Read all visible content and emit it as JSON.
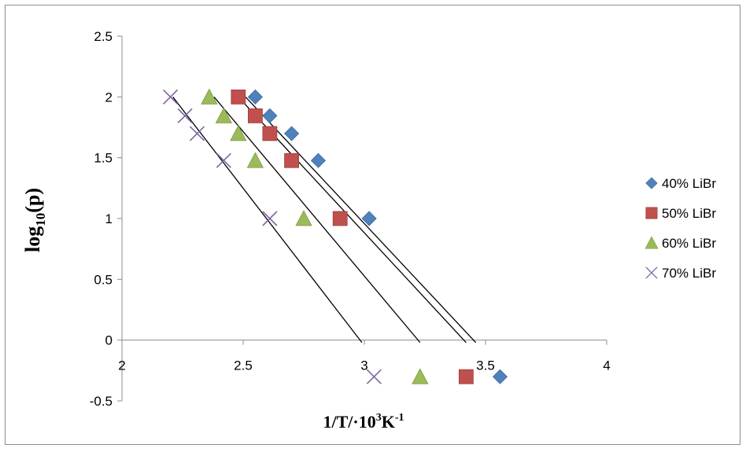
{
  "chart_data": {
    "type": "scatter",
    "title": "",
    "xlabel": {
      "main": "1/T/·10",
      "sup1": "3",
      "mid": "K",
      "sup2": "-1"
    },
    "ylabel": {
      "main": "log",
      "sub": "10",
      "tail": "(p)"
    },
    "xlim": [
      2,
      4
    ],
    "ylim": [
      -0.5,
      2.5
    ],
    "x_ticks": [
      "2",
      "2.5",
      "3",
      "3.5",
      "4"
    ],
    "y_ticks": [
      "2.5",
      "2",
      "1.5",
      "1",
      "0.5",
      "0",
      "-0.5"
    ],
    "grid": false,
    "legend_position": "right",
    "series": [
      {
        "name": "40% LiBr",
        "marker": "diamond",
        "color": "#4f81bd",
        "x": [
          2.55,
          2.61,
          2.7,
          2.81,
          3.02,
          3.56
        ],
        "y": [
          2.0,
          1.845,
          1.699,
          1.477,
          1.0,
          -0.301
        ],
        "trendline": [
          [
            2.51,
            2.0
          ],
          [
            3.46,
            -0.02
          ]
        ]
      },
      {
        "name": "50% LiBr",
        "marker": "square",
        "color": "#c0504d",
        "x": [
          2.48,
          2.55,
          2.61,
          2.7,
          2.9,
          3.42
        ],
        "y": [
          2.0,
          1.845,
          1.699,
          1.477,
          1.0,
          -0.301
        ],
        "trendline": [
          [
            2.48,
            2.0
          ],
          [
            3.42,
            -0.02
          ]
        ]
      },
      {
        "name": "60% LiBr",
        "marker": "triangle",
        "color": "#9bbb59",
        "x": [
          2.36,
          2.42,
          2.48,
          2.55,
          2.75,
          3.23
        ],
        "y": [
          2.0,
          1.845,
          1.699,
          1.477,
          1.0,
          -0.301
        ],
        "trendline": [
          [
            2.38,
            2.0
          ],
          [
            3.23,
            -0.02
          ]
        ]
      },
      {
        "name": "70% LiBr",
        "marker": "x",
        "color": "#8064a2",
        "x": [
          2.2,
          2.26,
          2.31,
          2.42,
          2.61,
          3.04
        ],
        "y": [
          2.0,
          1.845,
          1.699,
          1.477,
          1.0,
          -0.301
        ],
        "trendline": [
          [
            2.21,
            2.0
          ],
          [
            2.99,
            -0.02
          ]
        ]
      }
    ]
  }
}
